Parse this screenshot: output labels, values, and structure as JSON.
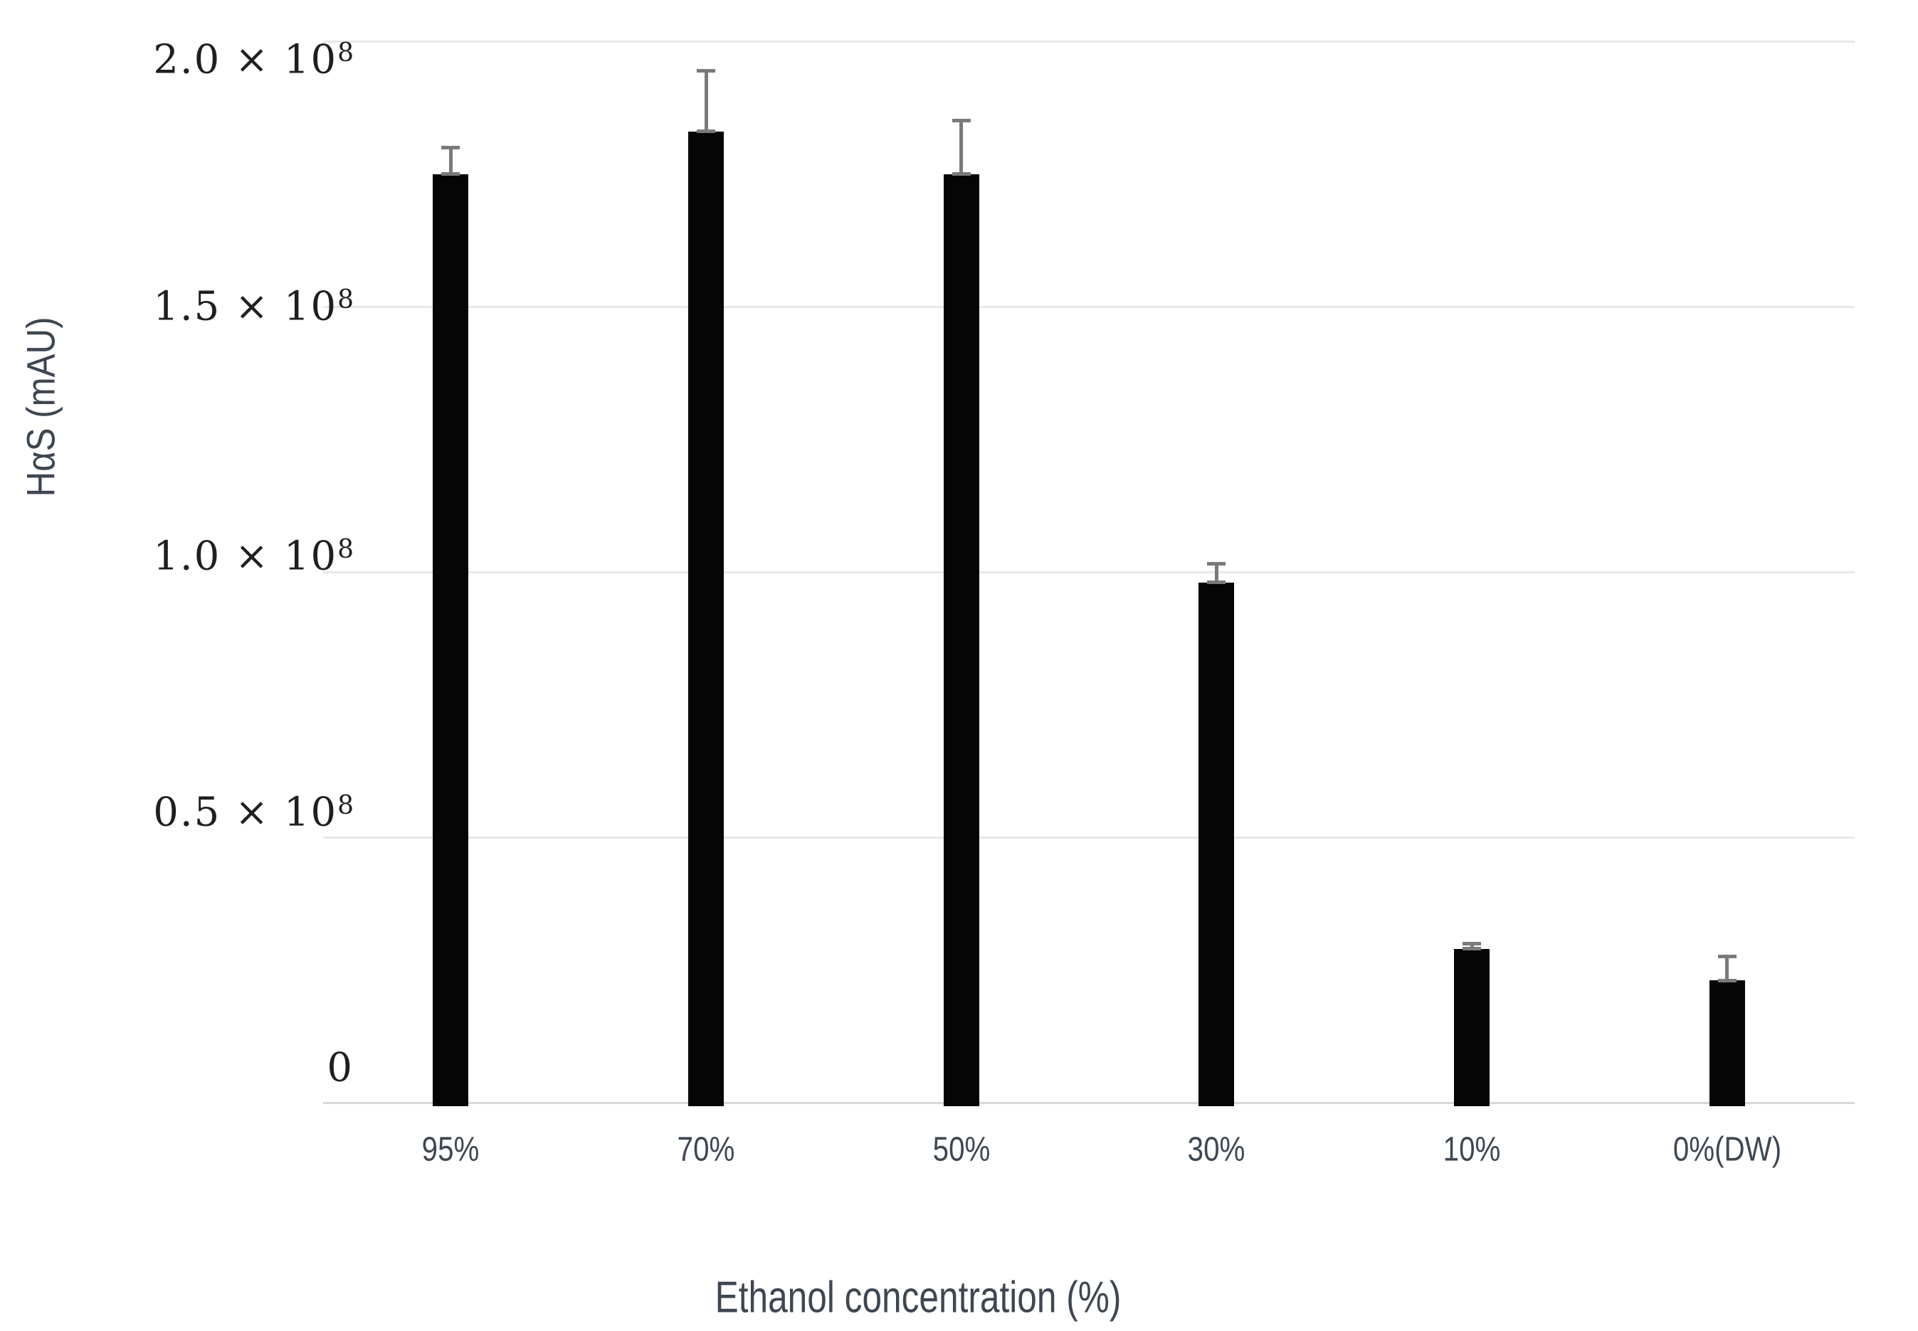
{
  "chart_data": {
    "type": "bar",
    "title": "",
    "xlabel": "Ethanol concentration (%)",
    "ylabel": "HαS (mAU)",
    "categories": [
      "95%",
      "70%",
      "50%",
      "30%",
      "10%",
      "0%(DW)"
    ],
    "values": [
      175000000,
      183000000,
      175000000,
      98000000,
      29000000,
      23000000
    ],
    "errors_plus": [
      5000000,
      11500000,
      10000000,
      3600000,
      1000000,
      4600000
    ],
    "y_ticks": [
      {
        "label": "2.0 × 10",
        "sup": "8",
        "value": 200000000
      },
      {
        "label": "1.5 × 10",
        "sup": "8",
        "value": 150000000
      },
      {
        "label": "1.0 × 10",
        "sup": "8",
        "value": 100000000
      },
      {
        "label": "0.5 × 10",
        "sup": "8",
        "value": 50000000
      },
      {
        "label": "0",
        "sup": "",
        "value": 0
      }
    ],
    "ylim": [
      0,
      208000000
    ],
    "grid": true,
    "legend": "none",
    "bar_color": "#050505",
    "error_bar_color": "#7a7a7a",
    "gridline_color": "#e7e7e7",
    "axis_line_color": "#d8d8d8",
    "label_color": "#3e4751",
    "tick_color": "#1f1f1f",
    "background_color": "#ffffff"
  }
}
